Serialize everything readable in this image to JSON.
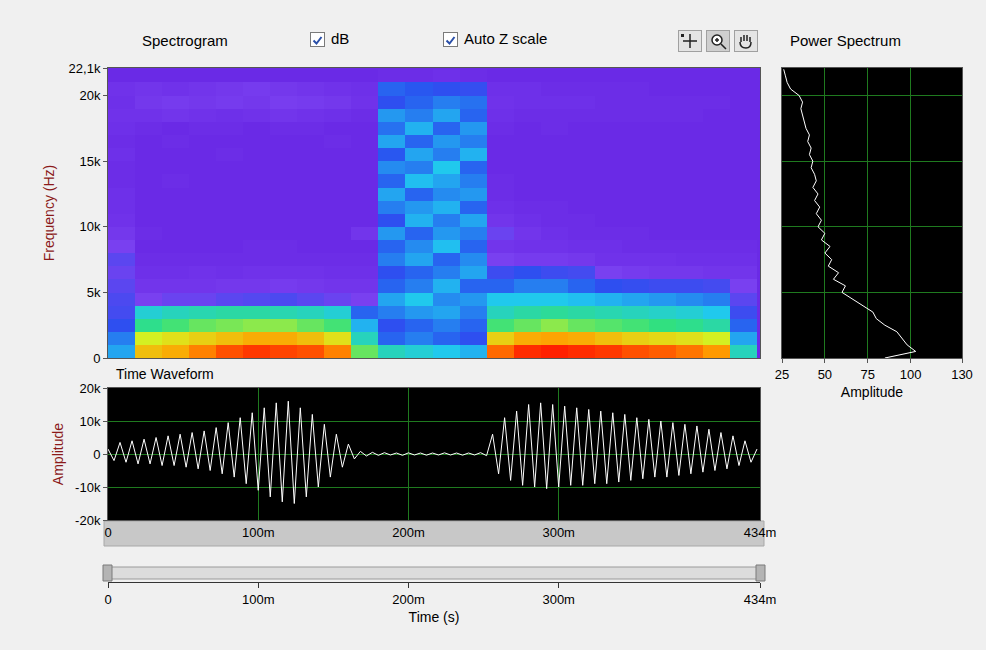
{
  "controls": [
    {
      "label": "dB",
      "checked": true
    },
    {
      "label": "Auto Z scale",
      "checked": true
    }
  ],
  "chart_data": [
    {
      "type": "heatmap",
      "title": "Spectrogram",
      "y_label": "Frequency (Hz)",
      "x": [
        0.009,
        0.027,
        0.045,
        0.063,
        0.081,
        0.099,
        0.117,
        0.135,
        0.153,
        0.171,
        0.189,
        0.207,
        0.225,
        0.243,
        0.261,
        0.279,
        0.297,
        0.315,
        0.333,
        0.351,
        0.369,
        0.387,
        0.405,
        0.423
      ],
      "y": [
        500,
        1500,
        2500,
        3500,
        4500,
        5500,
        6500,
        7500,
        8500,
        9500,
        10500,
        11500,
        12500,
        13500,
        14500,
        15500,
        16500,
        17500,
        18500,
        19500,
        20500,
        21500
      ],
      "z": [
        [
          55,
          52,
          48,
          45,
          44,
          42,
          40,
          42,
          38,
          35,
          33,
          32,
          32,
          31,
          31,
          32,
          31,
          32,
          33,
          32,
          33,
          30
        ],
        [
          82,
          76,
          66,
          60,
          38,
          34,
          32,
          31,
          30,
          31,
          30,
          30,
          30,
          30,
          30,
          30,
          30,
          31,
          33,
          35,
          34,
          30
        ],
        [
          84,
          78,
          68,
          62,
          40,
          34,
          32,
          31,
          30,
          30,
          30,
          30,
          30,
          31,
          30,
          30,
          31,
          30,
          34,
          36,
          33,
          30
        ],
        [
          88,
          80,
          70,
          63,
          40,
          34,
          33,
          31,
          30,
          30,
          30,
          30,
          30,
          30,
          30,
          30,
          30,
          31,
          33,
          35,
          34,
          30
        ],
        [
          92,
          82,
          71,
          64,
          42,
          35,
          32,
          31,
          30,
          30,
          30,
          30,
          30,
          30,
          30,
          31,
          30,
          31,
          32,
          36,
          35,
          30
        ],
        [
          94,
          84,
          72,
          64,
          43,
          35,
          33,
          31,
          31,
          30,
          30,
          30,
          30,
          30,
          30,
          30,
          30,
          30,
          33,
          35,
          36,
          30
        ],
        [
          93,
          84,
          72,
          63,
          44,
          36,
          33,
          31,
          31,
          30,
          30,
          30,
          30,
          30,
          30,
          30,
          30,
          31,
          34,
          37,
          35,
          30
        ],
        [
          92,
          82,
          70,
          62,
          42,
          35,
          33,
          31,
          30,
          30,
          30,
          30,
          30,
          30,
          30,
          30,
          30,
          31,
          33,
          36,
          34,
          30
        ],
        [
          88,
          78,
          68,
          60,
          40,
          34,
          32,
          31,
          30,
          30,
          30,
          30,
          30,
          30,
          30,
          30,
          31,
          30,
          32,
          35,
          33,
          30
        ],
        [
          70,
          62,
          56,
          50,
          38,
          34,
          32,
          31,
          30,
          34,
          30,
          30,
          30,
          30,
          30,
          30,
          30,
          30,
          31,
          33,
          32,
          30
        ],
        [
          62,
          50,
          48,
          52,
          55,
          50,
          48,
          52,
          50,
          54,
          48,
          52,
          55,
          50,
          53,
          49,
          55,
          51,
          54,
          48,
          50,
          31
        ],
        [
          60,
          52,
          50,
          54,
          58,
          52,
          50,
          55,
          53,
          50,
          56,
          54,
          50,
          57,
          52,
          55,
          50,
          56,
          52,
          50,
          49,
          31
        ],
        [
          58,
          50,
          52,
          55,
          53,
          56,
          52,
          50,
          57,
          54,
          52,
          56,
          53,
          55,
          58,
          52,
          54,
          50,
          55,
          52,
          48,
          32
        ],
        [
          56,
          48,
          50,
          52,
          54,
          50,
          55,
          53,
          50,
          52,
          55,
          50,
          54,
          52,
          50,
          56,
          52,
          54,
          50,
          51,
          47,
          31
        ],
        [
          90,
          80,
          68,
          62,
          58,
          50,
          46,
          38,
          34,
          40,
          34,
          32,
          31,
          31,
          30,
          30,
          30,
          31,
          32,
          33,
          32,
          30
        ],
        [
          95,
          84,
          70,
          64,
          58,
          52,
          48,
          36,
          33,
          34,
          32,
          31,
          30,
          30,
          30,
          30,
          30,
          30,
          31,
          32,
          32,
          30
        ],
        [
          96,
          85,
          72,
          65,
          58,
          52,
          46,
          36,
          33,
          32,
          31,
          31,
          30,
          30,
          30,
          30,
          30,
          31,
          31,
          32,
          31,
          30
        ],
        [
          95,
          84,
          70,
          64,
          57,
          50,
          45,
          35,
          32,
          31,
          31,
          30,
          30,
          30,
          30,
          30,
          30,
          30,
          31,
          32,
          31,
          30
        ],
        [
          94,
          82,
          69,
          63,
          56,
          48,
          38,
          33,
          32,
          31,
          30,
          30,
          30,
          30,
          30,
          30,
          30,
          30,
          31,
          31,
          31,
          30
        ],
        [
          92,
          80,
          68,
          62,
          55,
          47,
          36,
          33,
          31,
          31,
          30,
          30,
          30,
          30,
          30,
          30,
          30,
          30,
          31,
          31,
          31,
          30
        ],
        [
          91,
          79,
          67,
          61,
          54,
          46,
          35,
          33,
          31,
          30,
          30,
          30,
          30,
          30,
          30,
          30,
          30,
          30,
          31,
          31,
          30,
          30
        ],
        [
          89,
          78,
          66,
          60,
          53,
          46,
          35,
          32,
          31,
          30,
          30,
          30,
          30,
          30,
          30,
          30,
          30,
          30,
          31,
          31,
          30,
          30
        ],
        [
          86,
          76,
          64,
          58,
          52,
          45,
          34,
          32,
          31,
          30,
          30,
          30,
          30,
          30,
          30,
          30,
          30,
          30,
          30,
          31,
          30,
          30
        ],
        [
          62,
          55,
          50,
          46,
          42,
          38,
          34,
          32,
          31,
          30,
          30,
          30,
          30,
          30,
          30,
          30,
          30,
          30,
          30,
          30,
          30,
          30
        ]
      ],
      "xlim": [
        0,
        0.434
      ],
      "ylim": [
        0,
        22100
      ],
      "yticks": [
        0,
        {
          "value": 5000,
          "label": "5k"
        },
        {
          "value": 10000,
          "label": "10k"
        },
        {
          "value": 15000,
          "label": "15k"
        },
        {
          "value": 20000,
          "label": "20k"
        },
        {
          "value": 22100,
          "label": "22,1k"
        }
      ],
      "tick_labels": "y"
    },
    {
      "type": "line",
      "title": "Time Waveform",
      "x_label": "Time (s)",
      "y_label": "Amplitude",
      "x": [
        0,
        0.004,
        0.008,
        0.012,
        0.016,
        0.02,
        0.024,
        0.028,
        0.032,
        0.036,
        0.04,
        0.044,
        0.048,
        0.052,
        0.056,
        0.06,
        0.064,
        0.068,
        0.072,
        0.076,
        0.08,
        0.084,
        0.088,
        0.092,
        0.096,
        0.1,
        0.104,
        0.108,
        0.112,
        0.116,
        0.12,
        0.124,
        0.128,
        0.132,
        0.136,
        0.14,
        0.144,
        0.148,
        0.152,
        0.156,
        0.16,
        0.164,
        0.168,
        0.172,
        0.176,
        0.18,
        0.184,
        0.188,
        0.192,
        0.196,
        0.2,
        0.204,
        0.208,
        0.212,
        0.216,
        0.22,
        0.224,
        0.228,
        0.232,
        0.236,
        0.24,
        0.244,
        0.248,
        0.252,
        0.256,
        0.26,
        0.264,
        0.268,
        0.272,
        0.276,
        0.28,
        0.284,
        0.288,
        0.292,
        0.296,
        0.3,
        0.304,
        0.308,
        0.312,
        0.316,
        0.32,
        0.324,
        0.328,
        0.332,
        0.336,
        0.34,
        0.344,
        0.348,
        0.352,
        0.356,
        0.36,
        0.364,
        0.368,
        0.372,
        0.376,
        0.38,
        0.384,
        0.388,
        0.392,
        0.396,
        0.4,
        0.404,
        0.408,
        0.412,
        0.416,
        0.42,
        0.424,
        0.428,
        0.432
      ],
      "values": [
        1500,
        -2000,
        3500,
        -2500,
        4000,
        -3000,
        4500,
        -3000,
        5000,
        -3500,
        5500,
        -3500,
        6000,
        -4000,
        6500,
        -4500,
        7000,
        -5000,
        8000,
        -6000,
        9500,
        -7000,
        11000,
        -9000,
        12500,
        -11000,
        14000,
        -13000,
        15500,
        -14500,
        16000,
        -15000,
        14000,
        -13000,
        12000,
        -10000,
        9000,
        -7000,
        6000,
        -4000,
        3000,
        -1500,
        800,
        -600,
        500,
        -400,
        400,
        -300,
        300,
        -400,
        350,
        -300,
        300,
        -350,
        300,
        -300,
        350,
        -300,
        300,
        -350,
        300,
        -300,
        400,
        -500,
        6000,
        -6000,
        11000,
        -8000,
        13000,
        -9500,
        15000,
        -10000,
        15500,
        -10500,
        15000,
        -10000,
        14500,
        -9500,
        14000,
        -9500,
        13500,
        -9000,
        13000,
        -9000,
        12500,
        -8500,
        12000,
        -8000,
        11000,
        -7500,
        10500,
        -7000,
        10000,
        -7000,
        9500,
        -6500,
        9000,
        -6000,
        8500,
        -5500,
        7500,
        -5000,
        6500,
        -4500,
        5500,
        -3500,
        4000,
        -2500,
        1500
      ],
      "color": "#ffffff",
      "xlim": [
        0,
        0.434
      ],
      "ylim": [
        -20000,
        20000
      ],
      "xticks": [
        0,
        {
          "value": 0.1,
          "label": "100m"
        },
        {
          "value": 0.2,
          "label": "200m"
        },
        {
          "value": 0.3,
          "label": "300m"
        },
        {
          "value": 0.434,
          "label": "434m"
        }
      ],
      "yticks": [
        {
          "value": -20000,
          "label": "-20k"
        },
        {
          "value": -10000,
          "label": "-10k"
        },
        0,
        {
          "value": 10000,
          "label": "10k"
        },
        {
          "value": 20000,
          "label": "20k"
        }
      ],
      "grid": true
    },
    {
      "type": "line",
      "title": "Power Spectrum",
      "x_label": "Amplitude",
      "orientation": "horizontal",
      "frequency": [
        0,
        500,
        1000,
        1500,
        2000,
        2500,
        3000,
        3500,
        4000,
        4500,
        5000,
        5500,
        6000,
        6500,
        7000,
        7500,
        8000,
        8500,
        9000,
        9500,
        10000,
        10500,
        11000,
        11500,
        12000,
        12500,
        13000,
        13500,
        14000,
        14500,
        15000,
        15500,
        16000,
        16500,
        17000,
        17500,
        18000,
        18500,
        19000,
        19500,
        20000,
        20500,
        21000,
        21500,
        22000
      ],
      "values": [
        85,
        103,
        98,
        95,
        92,
        85,
        80,
        78,
        72,
        66,
        60,
        62,
        55,
        58,
        52,
        54,
        50,
        53,
        48,
        50,
        46,
        48,
        45,
        47,
        44,
        46,
        43,
        45,
        44,
        42,
        43,
        41,
        42,
        40,
        41,
        39,
        38,
        37,
        36,
        37,
        35,
        30,
        28,
        27,
        26
      ],
      "color": "#ffffff",
      "xlim": [
        25,
        130
      ],
      "ylim": [
        0,
        22100
      ],
      "xticks": [
        25,
        50,
        75,
        100,
        130
      ],
      "yticks": [
        0,
        5000,
        10000,
        15000,
        20000
      ],
      "tick_labels": "x",
      "grid": true
    }
  ]
}
